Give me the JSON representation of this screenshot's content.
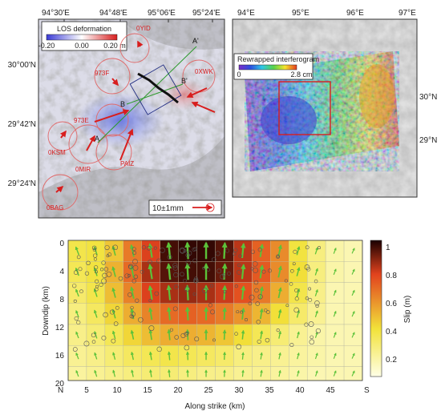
{
  "left_map": {
    "top_ticks": [
      "94°30'E",
      "94°48'E",
      "95°06'E",
      "95°24'E"
    ],
    "left_ticks": [
      "30°00'N",
      "29°42'N",
      "29°24'N"
    ],
    "colorbar": {
      "title": "LOS deformation",
      "ticks": [
        "-0.20",
        "0.00",
        "0.20 m"
      ],
      "colors": [
        "#3b3bd6",
        "#ffffff",
        "#d81e1e"
      ]
    },
    "stations": [
      "0YID",
      "973F",
      "0XWK",
      "973E",
      "0KSM",
      "0MIR",
      "PAIZ",
      "0BAG"
    ],
    "profile_labels": [
      "A",
      "A'",
      "B",
      "B'"
    ],
    "scale_label": "10±1mm"
  },
  "right_map": {
    "top_ticks": [
      "94°E",
      "95°E",
      "96°E",
      "97°E"
    ],
    "right_ticks": [
      "30°N",
      "29°N"
    ],
    "colorbar": {
      "title": "Rewrapped interferogram",
      "ticks": [
        "0",
        "2.8 cm"
      ]
    }
  },
  "slip": {
    "ylabel": "Downdip (km)",
    "xlabel": "Along strike (km)",
    "y_ticks": [
      "0",
      "4",
      "8",
      "12",
      "16",
      "20"
    ],
    "x_ticks": [
      "5",
      "10",
      "15",
      "20",
      "25",
      "30",
      "35",
      "40",
      "45"
    ],
    "left_end": "N",
    "right_end": "S",
    "colorbar_label": "Slip (m)",
    "colorbar_ticks": [
      "1",
      "0.8",
      "0.6",
      "0.4",
      "0.2"
    ],
    "colors": {
      "low": "#ffffe6",
      "mid": "#f2e23a",
      "high": "#e2431e",
      "top": "#1a0000",
      "arrow": "#5cc23a"
    }
  },
  "chart_data": {
    "type": "heatmap",
    "title": "",
    "xlabel": "Along strike (km)",
    "ylabel": "Downdip (km)",
    "xlim": [
      0,
      48
    ],
    "ylim": [
      0,
      20
    ],
    "cell_size_km": 3,
    "colorbar_range": [
      0.1,
      1.05
    ],
    "slip_m": [
      [
        0.4,
        0.42,
        0.5,
        0.68,
        0.82,
        1.0,
        1.02,
        1.02,
        0.98,
        0.86,
        0.74,
        0.64,
        0.42,
        0.3,
        0.22,
        0.2
      ],
      [
        0.38,
        0.42,
        0.55,
        0.72,
        0.88,
        0.98,
        1.0,
        1.0,
        0.96,
        0.86,
        0.76,
        0.64,
        0.44,
        0.3,
        0.22,
        0.2
      ],
      [
        0.34,
        0.4,
        0.52,
        0.66,
        0.82,
        0.88,
        0.9,
        0.88,
        0.84,
        0.78,
        0.68,
        0.56,
        0.4,
        0.28,
        0.2,
        0.2
      ],
      [
        0.3,
        0.36,
        0.46,
        0.56,
        0.66,
        0.72,
        0.74,
        0.72,
        0.68,
        0.62,
        0.54,
        0.44,
        0.34,
        0.26,
        0.2,
        0.2
      ],
      [
        0.28,
        0.32,
        0.38,
        0.46,
        0.52,
        0.56,
        0.56,
        0.54,
        0.5,
        0.44,
        0.38,
        0.32,
        0.26,
        0.22,
        0.2,
        0.2
      ],
      [
        0.26,
        0.28,
        0.32,
        0.36,
        0.38,
        0.4,
        0.38,
        0.36,
        0.34,
        0.3,
        0.28,
        0.26,
        0.24,
        0.22,
        0.2,
        0.2
      ],
      [
        0.24,
        0.26,
        0.28,
        0.3,
        0.32,
        0.32,
        0.3,
        0.28,
        0.28,
        0.26,
        0.26,
        0.24,
        0.22,
        0.2,
        0.2,
        0.2
      ]
    ]
  }
}
